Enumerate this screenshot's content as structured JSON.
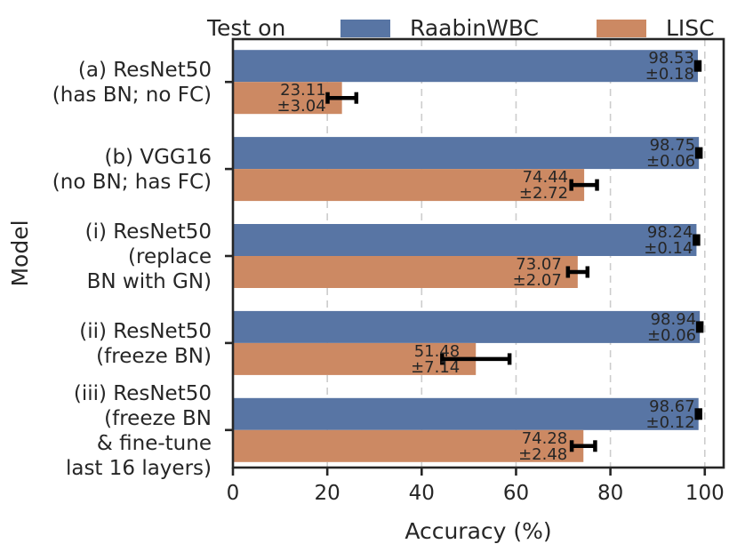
{
  "chart_data": {
    "type": "bar",
    "orientation": "horizontal",
    "xlabel": "Accuracy (%)",
    "ylabel": "Model",
    "xlim": [
      0,
      104
    ],
    "xticks": [
      0,
      20,
      40,
      60,
      80,
      100
    ],
    "grid": "x, dashed",
    "legend": {
      "title": "Test on",
      "placement": "top",
      "entries": [
        "RaabinWBC",
        "LISC"
      ]
    },
    "categories": [
      [
        "(a) ResNet50",
        "(has BN; no FC)"
      ],
      [
        "(b) VGG16",
        "(no BN; has FC)"
      ],
      [
        "(i) ResNet50",
        "(replace",
        "BN with GN)"
      ],
      [
        "(ii) ResNet50",
        "(freeze BN)"
      ],
      [
        "(iii) ResNet50",
        "(freeze BN",
        "& fine-tune",
        "last 16 layers)"
      ]
    ],
    "series": [
      {
        "name": "RaabinWBC",
        "color": "#5875a4",
        "values": [
          98.53,
          98.75,
          98.24,
          98.94,
          98.67
        ],
        "errors": [
          0.18,
          0.06,
          0.14,
          0.06,
          0.12
        ],
        "value_labels": [
          "98.53",
          "98.75",
          "98.24",
          "98.94",
          "98.67"
        ],
        "error_labels": [
          "±0.18",
          "±0.06",
          "±0.14",
          "±0.06",
          "±0.12"
        ]
      },
      {
        "name": "LISC",
        "color": "#cc8963",
        "values": [
          23.11,
          74.44,
          73.07,
          51.48,
          74.28
        ],
        "errors": [
          3.04,
          2.72,
          2.07,
          7.14,
          2.48
        ],
        "value_labels": [
          "23.11",
          "74.44",
          "73.07",
          "51.48",
          "74.28"
        ],
        "error_labels": [
          "±3.04",
          "±2.72",
          "±2.07",
          "±7.14",
          "±2.48"
        ]
      }
    ]
  }
}
